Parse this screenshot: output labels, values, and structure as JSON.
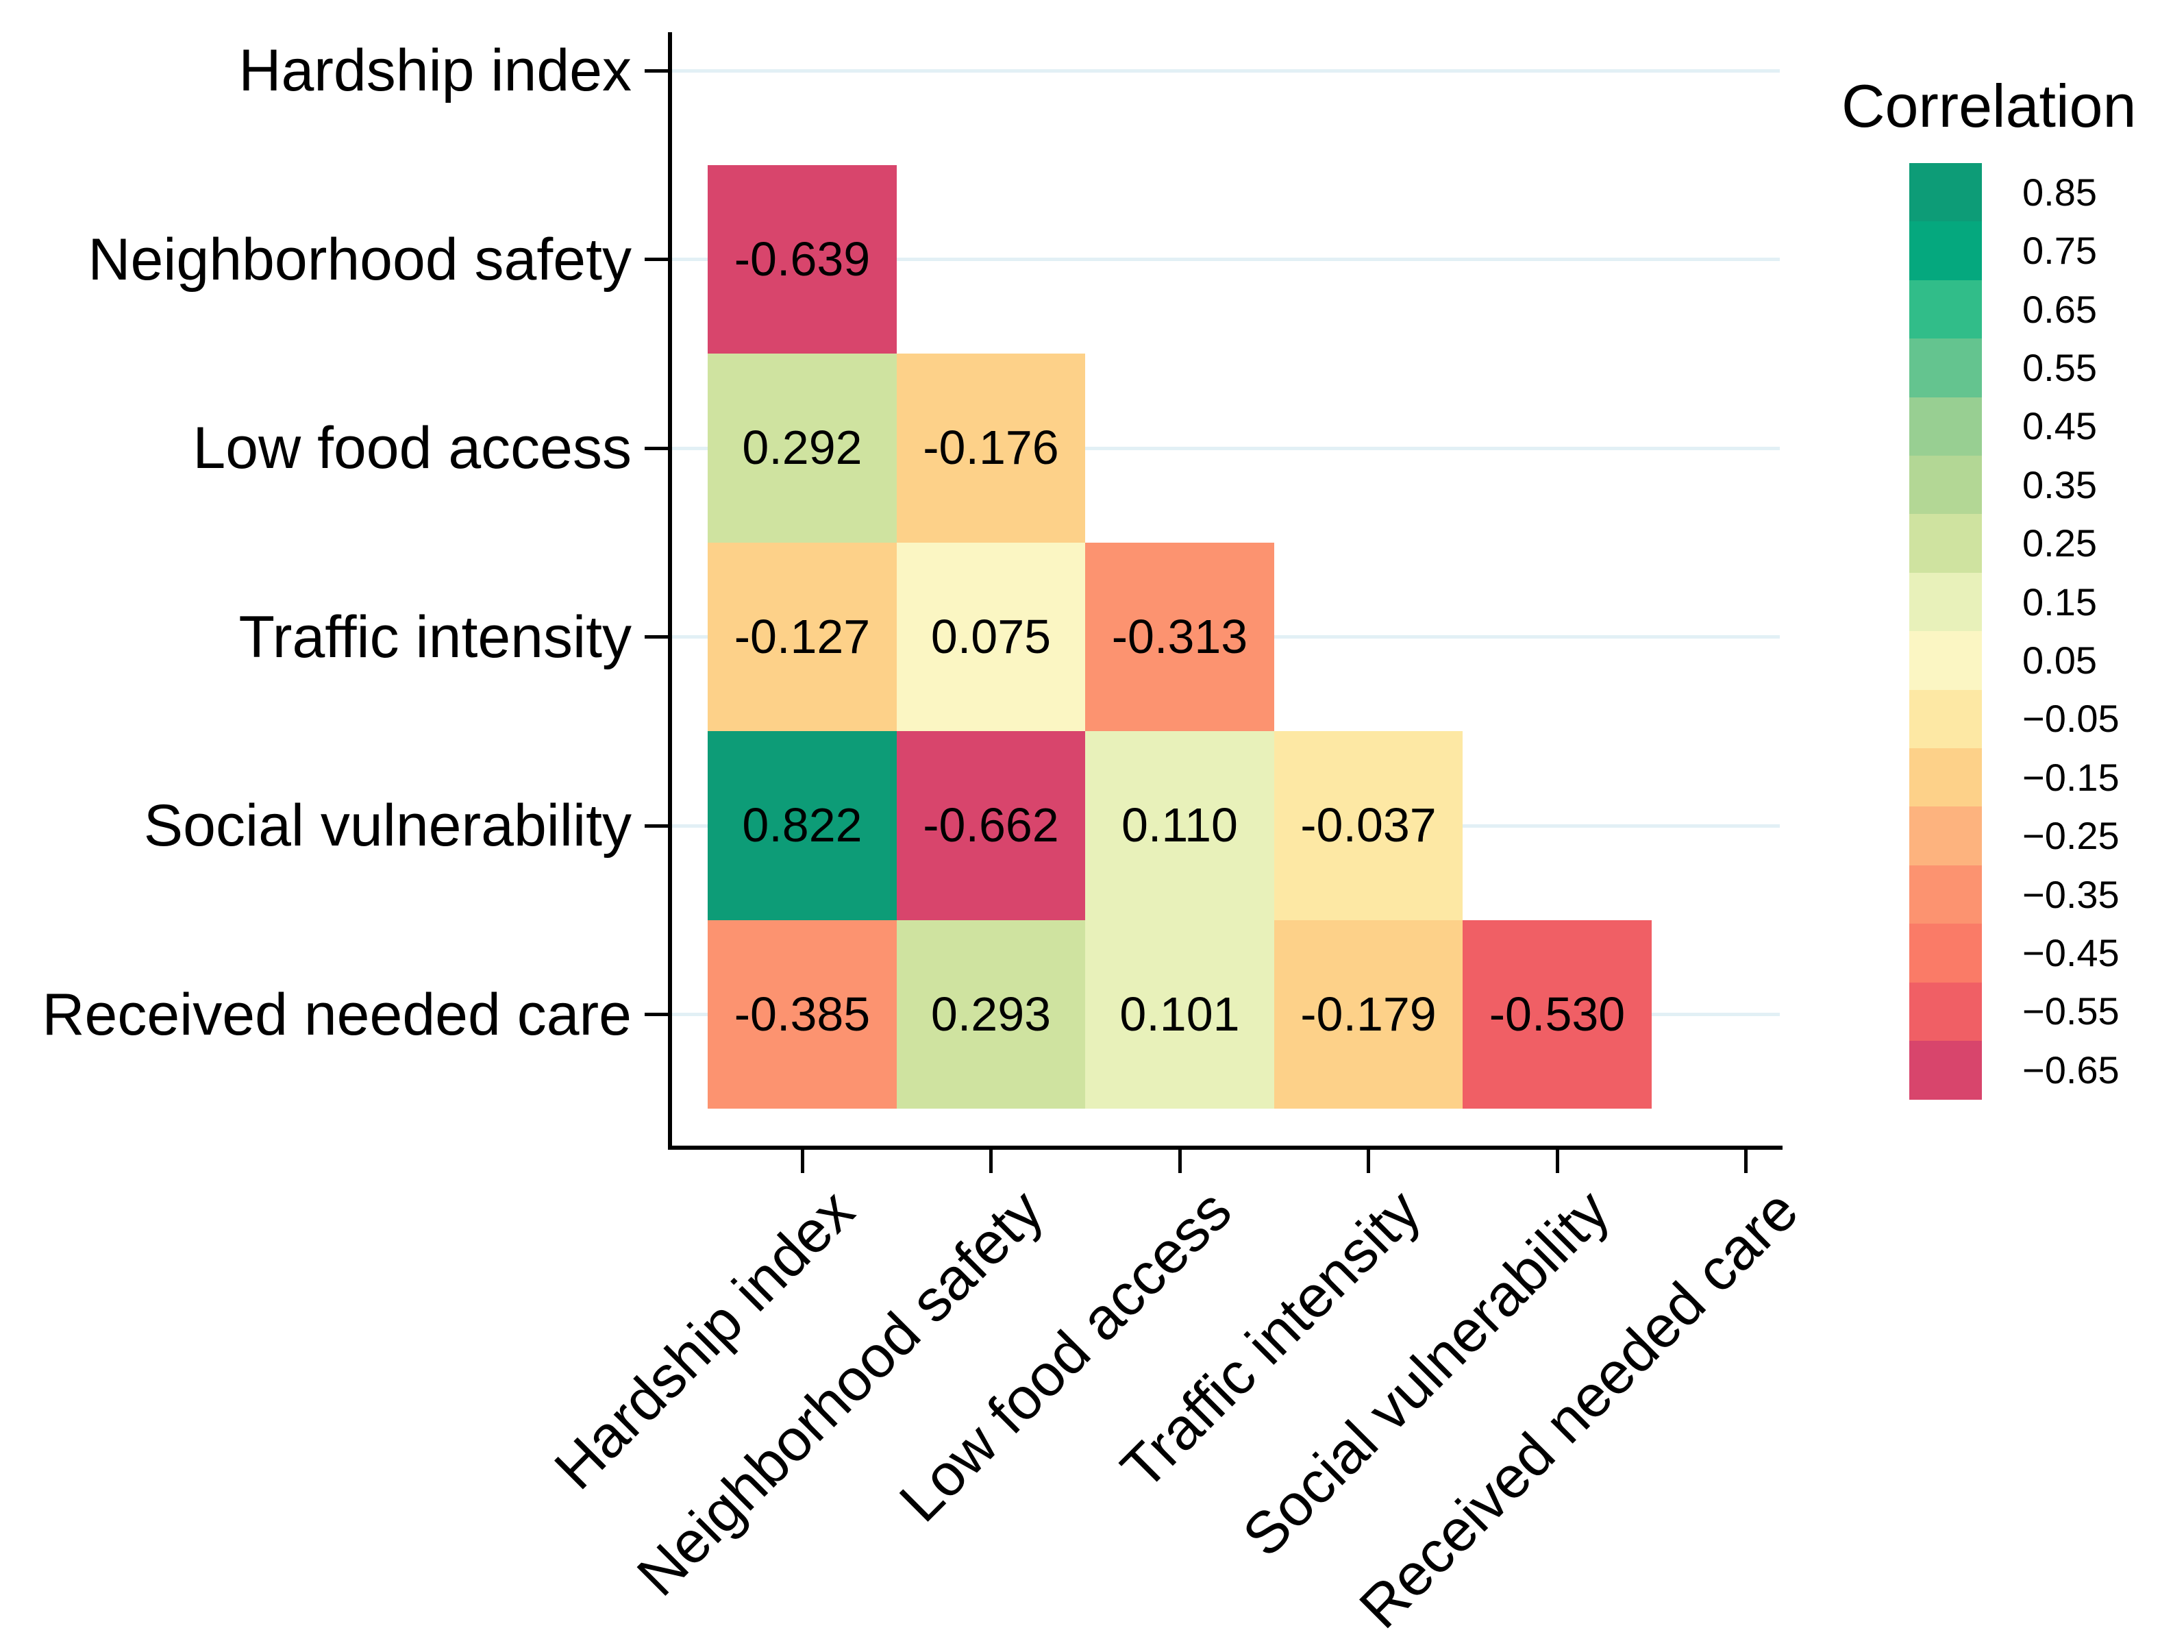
{
  "figure": {
    "background": "#ffffff",
    "gridline_color": "#e2f0f5",
    "axis_color": "#000000",
    "text_color": "#000000"
  },
  "chart_data": {
    "type": "heatmap",
    "subtype": "lower-triangle-correlation-matrix",
    "title": "",
    "categories": [
      "Hardship index",
      "Neighborhood safety",
      "Low food access",
      "Traffic intensity",
      "Social vulnerability",
      "Received needed care"
    ],
    "matrix": [
      [
        null,
        null,
        null,
        null,
        null,
        null
      ],
      [
        "-0.639",
        null,
        null,
        null,
        null,
        null
      ],
      [
        "0.292",
        "-0.176",
        null,
        null,
        null,
        null
      ],
      [
        "-0.127",
        "0.075",
        "-0.313",
        null,
        null,
        null
      ],
      [
        "0.822",
        "-0.662",
        "0.110",
        "-0.037",
        null,
        null
      ],
      [
        "-0.385",
        "0.293",
        "0.101",
        "-0.179",
        "-0.530",
        null
      ]
    ],
    "grid": "horizontal-only",
    "legend_position": "right",
    "colorbar": {
      "title": "Correlation",
      "domain_max": 0.9,
      "domain_min": -0.7,
      "bin_width": 0.1,
      "bins": [
        {
          "label": "0.85",
          "color": "#0d9c77"
        },
        {
          "label": "0.75",
          "color": "#05a87e"
        },
        {
          "label": "0.65",
          "color": "#31bd89"
        },
        {
          "label": "0.55",
          "color": "#64c48f"
        },
        {
          "label": "0.45",
          "color": "#98cf92"
        },
        {
          "label": "0.35",
          "color": "#b3d795"
        },
        {
          "label": "0.25",
          "color": "#cfe3a0"
        },
        {
          "label": "0.15",
          "color": "#e8f1ba"
        },
        {
          "label": "0.05",
          "color": "#fbf6c3"
        },
        {
          "label": "−0.05",
          "color": "#fde8a4"
        },
        {
          "label": "−0.15",
          "color": "#fdd189"
        },
        {
          "label": "−0.25",
          "color": "#fdb37e"
        },
        {
          "label": "−0.35",
          "color": "#fc9370"
        },
        {
          "label": "−0.45",
          "color": "#fa7b67"
        },
        {
          "label": "−0.55",
          "color": "#f05f65"
        },
        {
          "label": "−0.65",
          "color": "#d8456c"
        }
      ]
    }
  }
}
